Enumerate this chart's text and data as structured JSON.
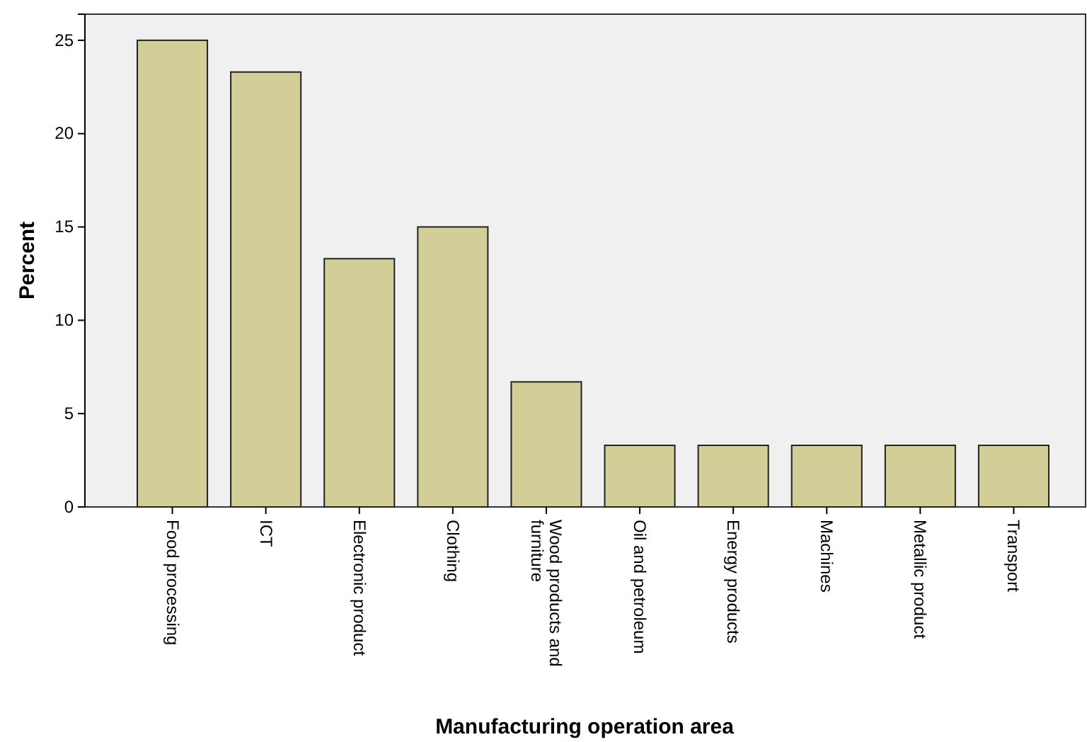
{
  "chart_data": {
    "type": "bar",
    "xlabel": "Manufacturing operation area",
    "ylabel": "Percent",
    "categories": [
      "Food processing",
      "ICT",
      "Electronic product",
      "Clothing",
      "Wood products and furniture",
      "Oil and petroleum",
      "Energy products",
      "Machines",
      "Metallic product",
      "Transport"
    ],
    "values": [
      25,
      23.3,
      13.3,
      15,
      6.7,
      3.3,
      3.3,
      3.3,
      3.3,
      3.3
    ],
    "color": "#d3ce97",
    "ylim": [
      0,
      26.4
    ],
    "yticks": [
      0,
      5,
      10,
      15,
      20,
      25
    ],
    "grid": false
  }
}
